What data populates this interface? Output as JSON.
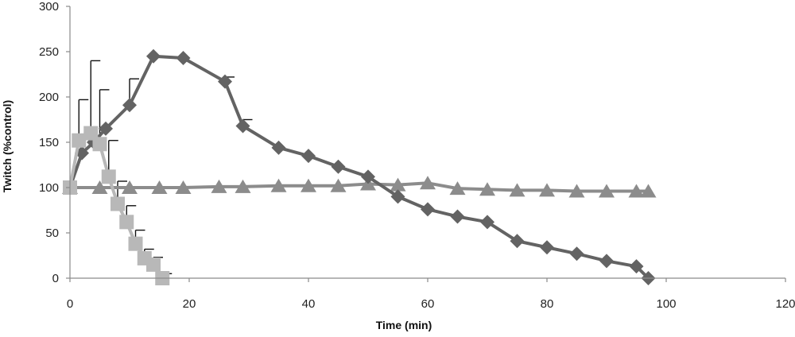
{
  "chart_data": {
    "type": "line",
    "title": "",
    "xlabel": "Time (min)",
    "ylabel": "Twitch (%control)",
    "xlim": [
      0,
      120
    ],
    "ylim": [
      0,
      300
    ],
    "xticks": [
      0,
      20,
      40,
      60,
      80,
      100,
      120
    ],
    "yticks": [
      0,
      50,
      100,
      150,
      200,
      250,
      300
    ],
    "grid": false,
    "legend": "none",
    "series": [
      {
        "marker": "diamond",
        "color": "#636363",
        "points": [
          [
            0,
            100
          ],
          [
            2,
            138
          ],
          [
            4,
            150
          ],
          [
            6,
            165
          ],
          [
            10,
            191
          ],
          [
            14,
            245
          ],
          [
            19,
            243
          ],
          [
            26,
            217
          ],
          [
            29,
            168
          ],
          [
            35,
            144
          ],
          [
            40,
            135
          ],
          [
            45,
            123
          ],
          [
            50,
            112
          ],
          [
            55,
            90
          ],
          [
            60,
            76
          ],
          [
            65,
            68
          ],
          [
            70,
            62
          ],
          [
            75,
            41
          ],
          [
            80,
            34
          ],
          [
            85,
            27
          ],
          [
            90,
            19
          ],
          [
            95,
            13
          ],
          [
            97,
            0
          ]
        ],
        "errors": [
          [
            10,
            29
          ],
          [
            26,
            5
          ],
          [
            29,
            7
          ]
        ]
      },
      {
        "marker": "square",
        "color": "#b8b8b8",
        "points": [
          [
            0,
            100
          ],
          [
            1.5,
            152
          ],
          [
            3.5,
            160
          ],
          [
            5,
            148
          ],
          [
            6.5,
            112
          ],
          [
            8,
            82
          ],
          [
            9.5,
            62
          ],
          [
            11,
            38
          ],
          [
            12.5,
            22
          ],
          [
            14,
            15
          ],
          [
            15.5,
            0
          ]
        ],
        "errors": [
          [
            1.5,
            45
          ],
          [
            3.5,
            80
          ],
          [
            5,
            60
          ],
          [
            6.5,
            40
          ],
          [
            8,
            25
          ],
          [
            9.5,
            18
          ],
          [
            11,
            15
          ],
          [
            12.5,
            10
          ],
          [
            14,
            8
          ],
          [
            15.5,
            5
          ]
        ]
      },
      {
        "marker": "triangle",
        "color": "#8c8c8c",
        "points": [
          [
            0,
            100
          ],
          [
            5,
            100
          ],
          [
            10,
            100
          ],
          [
            15,
            100
          ],
          [
            19,
            100
          ],
          [
            25,
            101
          ],
          [
            29,
            101
          ],
          [
            35,
            102
          ],
          [
            40,
            102
          ],
          [
            45,
            102
          ],
          [
            50,
            104
          ],
          [
            55,
            103
          ],
          [
            60,
            105
          ],
          [
            65,
            99
          ],
          [
            70,
            98
          ],
          [
            75,
            97
          ],
          [
            80,
            97
          ],
          [
            85,
            96
          ],
          [
            90,
            96
          ],
          [
            95,
            96
          ],
          [
            97,
            96
          ]
        ],
        "errors": []
      }
    ]
  }
}
